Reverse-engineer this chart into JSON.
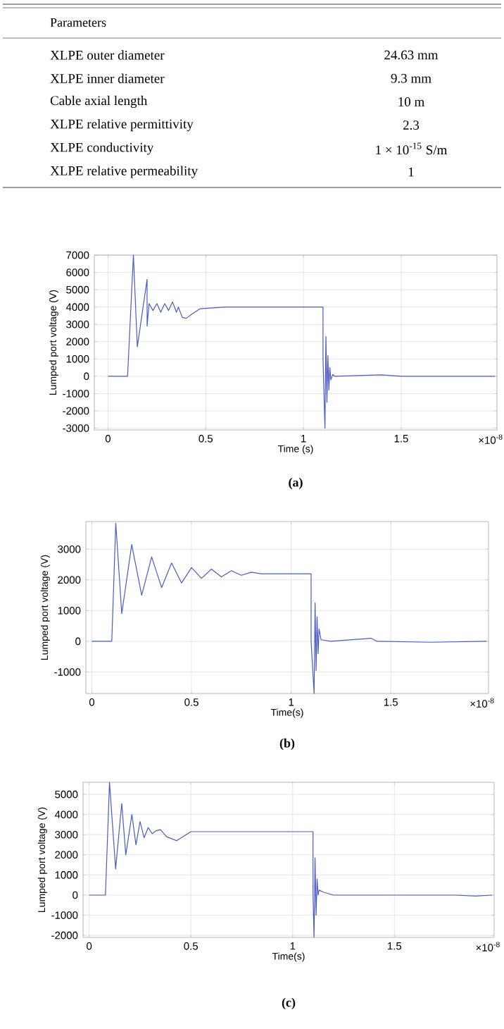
{
  "chart_data": [
    {
      "type": "other",
      "title": "Parameters",
      "annotations": [
        "XLPE outer diameter",
        "24.63 mm",
        "XLPE inner diameter",
        "9.3 mm",
        "Cable axial length",
        "10 m",
        "XLPE relative permittivity",
        "2.3",
        "XLPE conductivity",
        "1 × 10$^{-15}$ S/m",
        "XLPE relative permeability",
        "1"
      ]
    },
    {
      "type": "line",
      "xlabel": "Time (s)",
      "ylabel": "Lumped port voltage (V)",
      "xlim": [
        -0.07,
        1.99
      ],
      "ylim": [
        -3100,
        7000
      ],
      "xticks": [
        0,
        0.5,
        1,
        1.5
      ],
      "yticks": [
        -3000,
        -2000,
        -1000,
        0,
        1000,
        2000,
        3000,
        4000,
        5000,
        6000,
        7000
      ],
      "grid": true,
      "color": "#4a5cc0",
      "annotations": [
        "×10$^{-8}$",
        "(a)"
      ],
      "x": [
        0,
        0.1,
        0.13,
        0.15,
        0.2,
        0.2,
        0.21,
        0.23,
        0.25,
        0.27,
        0.29,
        0.31,
        0.33,
        0.35,
        0.36,
        0.38,
        0.4,
        0.43,
        0.47,
        0.6,
        1.1,
        1.1,
        1.11,
        1.115,
        1.12,
        1.125,
        1.13,
        1.135,
        1.14,
        1.15,
        1.16,
        1.4,
        1.5,
        1.98
      ],
      "values": [
        0,
        0,
        7000,
        1700,
        5600,
        2900,
        4200,
        3800,
        4200,
        3700,
        4200,
        3800,
        4300,
        3700,
        4000,
        3400,
        3350,
        3600,
        3900,
        4000,
        4000,
        1000,
        -3000,
        2300,
        -1500,
        1200,
        -800,
        500,
        -200,
        100,
        0,
        80,
        0,
        0
      ]
    },
    {
      "type": "line",
      "xlabel": "Time(s)",
      "ylabel": "Lumped port voltage (V)",
      "xlim": [
        -0.03,
        1.99
      ],
      "ylim": [
        -1700,
        3900
      ],
      "xticks": [
        0,
        0.5,
        1,
        1.5
      ],
      "yticks": [
        -1000,
        0,
        1000,
        2000,
        3000
      ],
      "grid": true,
      "color": "#4a5cc0",
      "annotations": [
        "×10$^{-8}$",
        "(b)"
      ],
      "x": [
        0,
        0.1,
        0.12,
        0.15,
        0.2,
        0.25,
        0.3,
        0.35,
        0.4,
        0.45,
        0.5,
        0.55,
        0.6,
        0.65,
        0.7,
        0.75,
        0.8,
        0.85,
        1.1,
        1.1,
        1.115,
        1.12,
        1.125,
        1.13,
        1.135,
        1.14,
        1.15,
        1.2,
        1.4,
        1.43,
        1.7,
        1.98
      ],
      "values": [
        0,
        0,
        3850,
        900,
        3150,
        1500,
        2750,
        1750,
        2550,
        1900,
        2400,
        2050,
        2350,
        2100,
        2300,
        2150,
        2250,
        2200,
        2200,
        0,
        -1700,
        1250,
        -950,
        800,
        -400,
        400,
        50,
        0,
        100,
        0,
        -30,
        0
      ]
    },
    {
      "type": "line",
      "xlabel": "Time(s)",
      "ylabel": "Lumped port voltage (V)",
      "xlim": [
        -0.03,
        1.99
      ],
      "ylim": [
        -2100,
        5600
      ],
      "xticks": [
        0,
        0.5,
        1,
        1.5
      ],
      "yticks": [
        -2000,
        -1000,
        0,
        1000,
        2000,
        3000,
        4000,
        5000
      ],
      "grid": true,
      "color": "#4a5cc0",
      "annotations": [
        "×10$^{-8}$",
        "(c)"
      ],
      "x": [
        0,
        0.08,
        0.1,
        0.13,
        0.16,
        0.18,
        0.21,
        0.23,
        0.25,
        0.27,
        0.29,
        0.31,
        0.33,
        0.35,
        0.38,
        0.43,
        0.46,
        0.5,
        1.1,
        1.1,
        1.105,
        1.11,
        1.115,
        1.12,
        1.125,
        1.13,
        1.15,
        1.2,
        1.5,
        1.8,
        1.9,
        1.98
      ],
      "values": [
        0,
        0,
        5600,
        1300,
        4550,
        2000,
        4000,
        2500,
        3650,
        2850,
        3350,
        3050,
        3200,
        3250,
        2900,
        2700,
        2900,
        3150,
        3150,
        0,
        -2100,
        1850,
        -1000,
        800,
        0,
        250,
        150,
        0,
        0,
        0,
        -50,
        0
      ]
    }
  ]
}
